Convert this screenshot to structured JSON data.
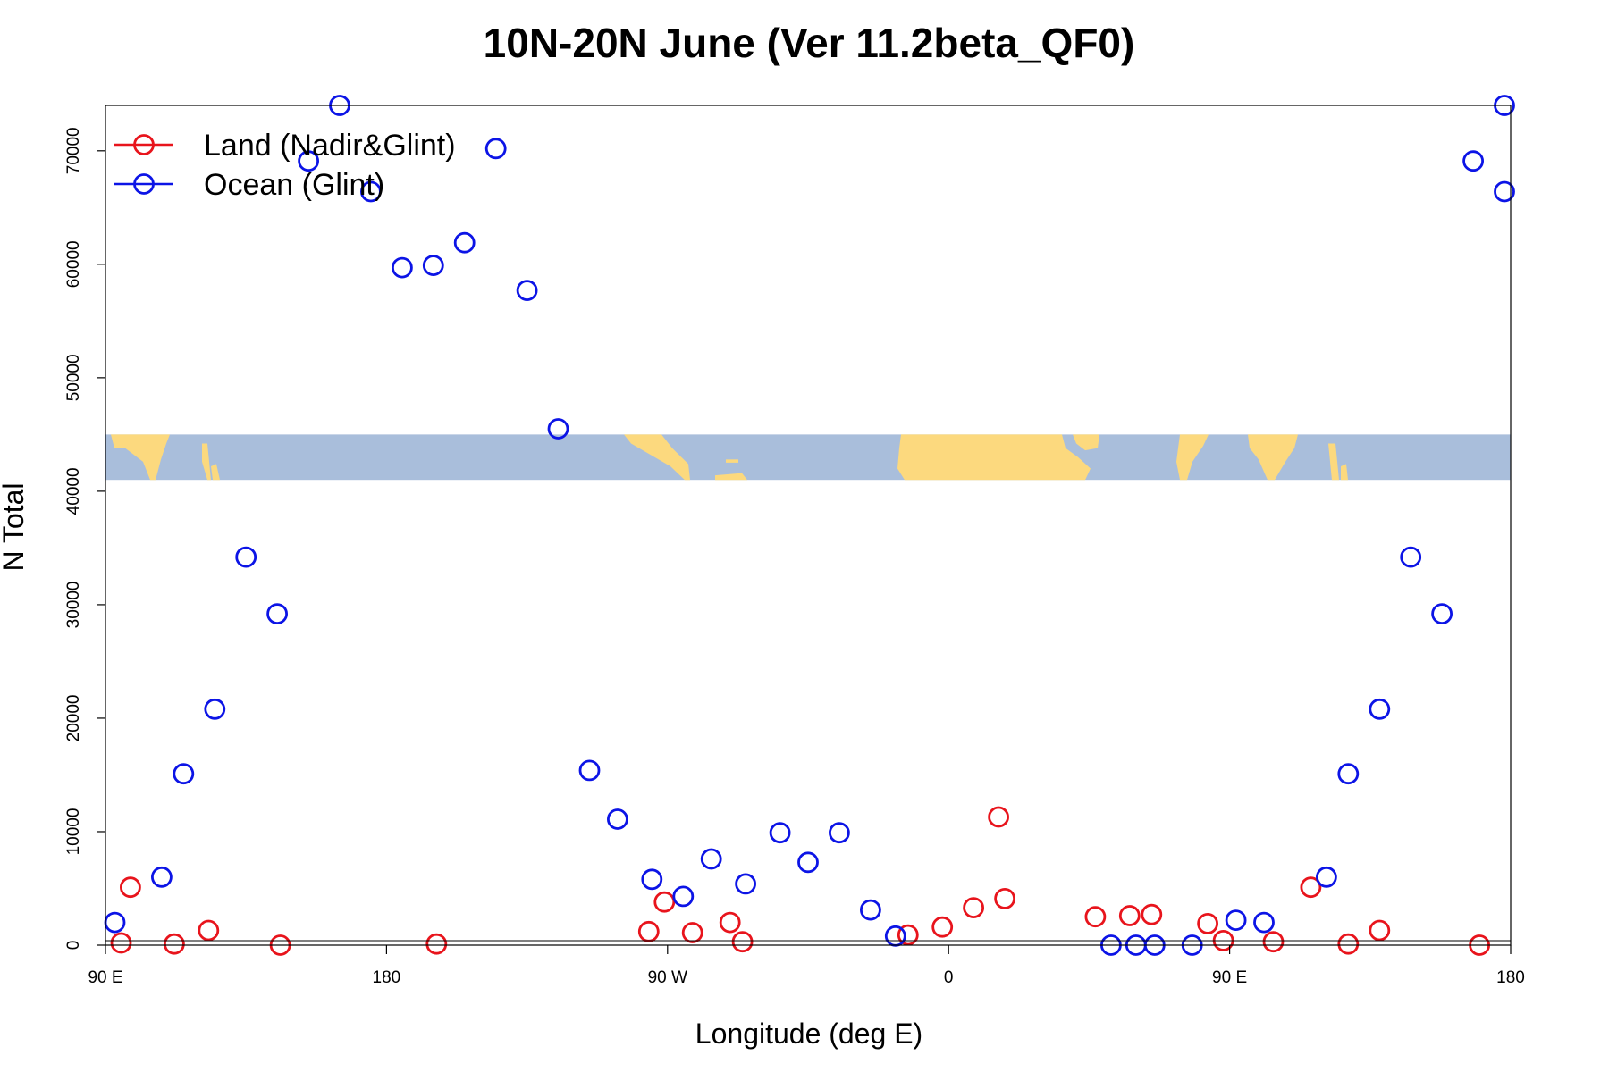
{
  "chart_data": {
    "type": "scatter",
    "title": "10N-20N June (Ver 11.2beta_QF0)",
    "xlabel": "Longitude (deg E)",
    "ylabel": "N Total",
    "xlim": [
      90,
      540
    ],
    "ylim": [
      0,
      74000
    ],
    "x_ticks": [
      {
        "value": 90,
        "label": "90 E"
      },
      {
        "value": 180,
        "label": "180"
      },
      {
        "value": 270,
        "label": "90 W"
      },
      {
        "value": 360,
        "label": "0"
      },
      {
        "value": 450,
        "label": "90 E"
      },
      {
        "value": 540,
        "label": "180"
      }
    ],
    "y_ticks": [
      {
        "value": 0,
        "label": "0"
      },
      {
        "value": 10000,
        "label": "10000"
      },
      {
        "value": 20000,
        "label": "20000"
      },
      {
        "value": 30000,
        "label": "30000"
      },
      {
        "value": 40000,
        "label": "40000"
      },
      {
        "value": 50000,
        "label": "50000"
      },
      {
        "value": 60000,
        "label": "60000"
      },
      {
        "value": 70000,
        "label": "70000"
      }
    ],
    "legend_position": "top-left",
    "grid": false,
    "map_strip": {
      "ymin": 41000,
      "ymax": 45000,
      "ocean_color": "#a9bedb",
      "land_color": "#fcd97e"
    },
    "series": [
      {
        "name": "Land (Nadir&Glint)",
        "color": "#e8141c",
        "points": [
          [
            98,
            5100
          ],
          [
            95,
            200
          ],
          [
            112,
            100
          ],
          [
            123,
            1300
          ],
          [
            146,
            0
          ],
          [
            196,
            100
          ],
          [
            269,
            3800
          ],
          [
            264,
            1200
          ],
          [
            278,
            1100
          ],
          [
            290,
            2000
          ],
          [
            294,
            300
          ],
          [
            376,
            11300
          ],
          [
            358,
            1600
          ],
          [
            368,
            3300
          ],
          [
            378,
            4100
          ],
          [
            347,
            900
          ],
          [
            407,
            2500
          ],
          [
            418,
            2600
          ],
          [
            425,
            2700
          ],
          [
            443,
            1900
          ],
          [
            448,
            400
          ],
          [
            464,
            300
          ],
          [
            476,
            5100
          ],
          [
            488,
            100
          ],
          [
            498,
            1300
          ],
          [
            530,
            0
          ]
        ]
      },
      {
        "name": "Ocean (Glint)",
        "color": "#0c14e6",
        "points": [
          [
            93,
            2000
          ],
          [
            108,
            6000
          ],
          [
            115,
            15100
          ],
          [
            125,
            20800
          ],
          [
            135,
            34200
          ],
          [
            145,
            29200
          ],
          [
            155,
            69100
          ],
          [
            165,
            74000
          ],
          [
            175,
            66400
          ],
          [
            185,
            59700
          ],
          [
            195,
            59900
          ],
          [
            205,
            61900
          ],
          [
            215,
            70200
          ],
          [
            225,
            57700
          ],
          [
            235,
            45500
          ],
          [
            245,
            15400
          ],
          [
            254,
            11100
          ],
          [
            265,
            5800
          ],
          [
            275,
            4300
          ],
          [
            284,
            7600
          ],
          [
            295,
            5400
          ],
          [
            306,
            9900
          ],
          [
            315,
            7300
          ],
          [
            325,
            9900
          ],
          [
            335,
            3100
          ],
          [
            343,
            800
          ],
          [
            412,
            0
          ],
          [
            420,
            0
          ],
          [
            426,
            0
          ],
          [
            438,
            0
          ],
          [
            452,
            2200
          ],
          [
            461,
            2000
          ],
          [
            481,
            6000
          ],
          [
            488,
            15100
          ],
          [
            498,
            20800
          ],
          [
            508,
            34200
          ],
          [
            518,
            29200
          ],
          [
            528,
            69100
          ],
          [
            538,
            74000
          ],
          [
            538,
            66400
          ]
        ]
      }
    ]
  }
}
